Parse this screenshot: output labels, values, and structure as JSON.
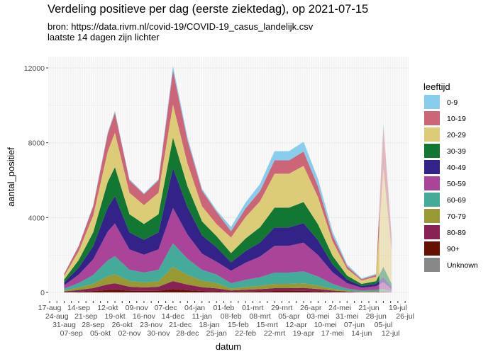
{
  "title": "Verdeling positieve per dag (eerste ziektedag), op 2021-07-15",
  "subtitle_1": "bron: https://data.rivm.nl/covid-19/COVID-19_casus_landelijk.csv",
  "subtitle_2": "laatste 14 dagen zijn lichter",
  "chart_data": {
    "type": "area",
    "stacked": true,
    "xlabel": "datum",
    "ylabel": "aantal_positief",
    "ylim": [
      0,
      12600
    ],
    "y_ticks": [
      0,
      4000,
      8000,
      12000
    ],
    "y_tick_labels": [
      "0",
      "4000",
      "8000",
      "12000"
    ],
    "xlim": [
      "2020-08-14",
      "2021-07-29"
    ],
    "x_tick_labels": [
      "17-aug",
      "24-aug",
      "31-aug",
      "07-sep",
      "14-sep",
      "21-sep",
      "28-sep",
      "05-okt",
      "12-okt",
      "19-okt",
      "26-okt",
      "02-nov",
      "09-nov",
      "16-nov",
      "23-nov",
      "30-nov",
      "07-dec",
      "14-dec",
      "21-dec",
      "28-dec",
      "04-jan",
      "11-jan",
      "18-jan",
      "25-jan",
      "01-feb",
      "08-feb",
      "15-feb",
      "22-feb",
      "01-mrt",
      "08-mrt",
      "15-mrt",
      "22-mrt",
      "29-mrt",
      "05-apr",
      "12-apr",
      "19-apr",
      "26-apr",
      "03-mei",
      "10-mei",
      "17-mei",
      "24-mei",
      "31-mei",
      "07-jun",
      "14-jun",
      "21-jun",
      "28-jun",
      "05-jul",
      "12-jul",
      "19-jul",
      "26-jul"
    ],
    "grid": true,
    "lighter_from": "2021-07-01",
    "legend_title": "leeftijd",
    "legend_position": "right",
    "x": [
      "2020-08-31",
      "2020-09-14",
      "2020-09-28",
      "2020-10-12",
      "2020-10-19",
      "2020-11-02",
      "2020-11-16",
      "2020-11-30",
      "2020-12-14",
      "2020-12-28",
      "2021-01-11",
      "2021-01-25",
      "2021-02-08",
      "2021-02-22",
      "2021-03-08",
      "2021-03-22",
      "2021-04-05",
      "2021-04-19",
      "2021-05-03",
      "2021-05-17",
      "2021-05-31",
      "2021-06-14",
      "2021-06-28",
      "2021-07-05",
      "2021-07-11",
      "2021-07-13"
    ],
    "series": [
      {
        "name": "0-9",
        "color": "#88CCEE",
        "values": [
          10,
          25,
          47,
          86,
          97,
          61,
          53,
          61,
          242,
          166,
          111,
          88,
          228,
          312,
          377,
          491,
          491,
          523,
          393,
          211,
          98,
          49,
          65,
          182,
          91,
          60
        ]
      },
      {
        "name": "10-19",
        "color": "#CC6677",
        "values": [
          110,
          275,
          512,
          941,
          1067,
          666,
          583,
          666,
          1815,
          1245,
          833,
          660,
          333,
          456,
          551,
          717,
          717,
          765,
          575,
          309,
          143,
          71,
          95,
          2275,
          1138,
          750
        ]
      },
      {
        "name": "20-29",
        "color": "#DDCC77",
        "values": [
          190,
          475,
          884,
          1625,
          1843,
          1150,
          1007,
          1150,
          1767,
          1212,
          810,
          642,
          840,
          1152,
          1392,
          1812,
          1812,
          1932,
          1452,
          780,
          360,
          180,
          240,
          5278,
          2639,
          1740
        ]
      },
      {
        "name": "30-39",
        "color": "#117733",
        "values": [
          160,
          400,
          744,
          1368,
          1552,
          968,
          848,
          968,
          1634,
          1121,
          749,
          594,
          490,
          672,
          812,
          1057,
          1057,
          1127,
          847,
          455,
          210,
          105,
          140,
          546,
          273,
          180
        ]
      },
      {
        "name": "40-49",
        "color": "#332288",
        "values": [
          150,
          375,
          698,
          1283,
          1455,
          908,
          795,
          908,
          2130,
          1461,
          977,
          774,
          455,
          624,
          754,
          982,
          982,
          1047,
          787,
          423,
          195,
          98,
          130,
          273,
          137,
          90
        ]
      },
      {
        "name": "50-59",
        "color": "#AA4499",
        "values": [
          180,
          450,
          837,
          1539,
          1746,
          1089,
          954,
          1089,
          1888,
          1295,
          866,
          686,
          665,
          912,
          1102,
          1435,
          1435,
          1530,
          1150,
          618,
          285,
          143,
          190,
          364,
          182,
          120
        ]
      },
      {
        "name": "60-69",
        "color": "#44AA99",
        "values": [
          100,
          250,
          465,
          855,
          970,
          605,
          530,
          605,
          1258,
          863,
          577,
          458,
          280,
          384,
          464,
          604,
          604,
          644,
          484,
          260,
          120,
          60,
          80,
          91,
          46,
          30
        ]
      },
      {
        "name": "70-79",
        "color": "#999933",
        "values": [
          50,
          125,
          233,
          428,
          485,
          303,
          265,
          303,
          762,
          523,
          350,
          277,
          105,
          144,
          174,
          227,
          227,
          242,
          182,
          98,
          45,
          23,
          30,
          46,
          23,
          15
        ]
      },
      {
        "name": "80-89",
        "color": "#882255",
        "values": [
          35,
          88,
          163,
          299,
          340,
          212,
          186,
          212,
          436,
          299,
          200,
          158,
          70,
          96,
          116,
          151,
          151,
          161,
          121,
          65,
          30,
          15,
          20,
          27,
          14,
          9
        ]
      },
      {
        "name": "90+",
        "color": "#661100",
        "values": [
          15,
          38,
          70,
          128,
          146,
          91,
          80,
          91,
          169,
          116,
          78,
          62,
          35,
          48,
          58,
          76,
          76,
          81,
          61,
          33,
          15,
          8,
          10,
          18,
          9,
          6
        ]
      },
      {
        "name": "Unknown",
        "color": "#888888",
        "values": [
          0,
          0,
          0,
          0,
          0,
          0,
          0,
          0,
          0,
          0,
          0,
          0,
          0,
          0,
          0,
          0,
          0,
          0,
          0,
          0,
          0,
          0,
          0,
          0,
          0,
          0
        ]
      }
    ]
  }
}
